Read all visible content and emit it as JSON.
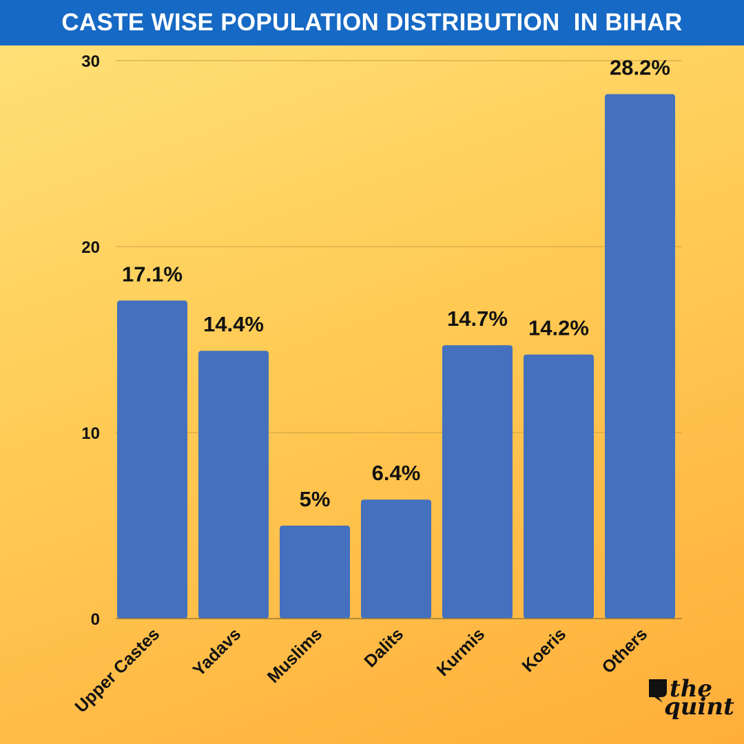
{
  "header": {
    "title": "CASTE WISE POPULATION DISTRIBUTION  IN BIHAR"
  },
  "chart_data": {
    "type": "bar",
    "title": "CASTE WISE POPULATION DISTRIBUTION  IN BIHAR",
    "categories": [
      "Upper Castes",
      "Yadavs",
      "Muslims",
      "Dalits",
      "Kurmis",
      "Koeris",
      "Others"
    ],
    "values": [
      17.1,
      14.4,
      5,
      6.4,
      14.7,
      14.2,
      28.2
    ],
    "value_labels": [
      "17.1%",
      "14.4%",
      "5%",
      "6.4%",
      "14.7%",
      "14.2%",
      "28.2%"
    ],
    "yticks": [
      0,
      10,
      20,
      30
    ],
    "ylim": [
      0,
      30
    ],
    "xlabel": "",
    "ylabel": "",
    "grid": true,
    "bar_color": "#4470BE"
  },
  "logo": {
    "line1": "the",
    "line2": "quint"
  },
  "colors": {
    "title_bar": "#1669C4",
    "bar": "#4470BE",
    "text": "#111111"
  }
}
